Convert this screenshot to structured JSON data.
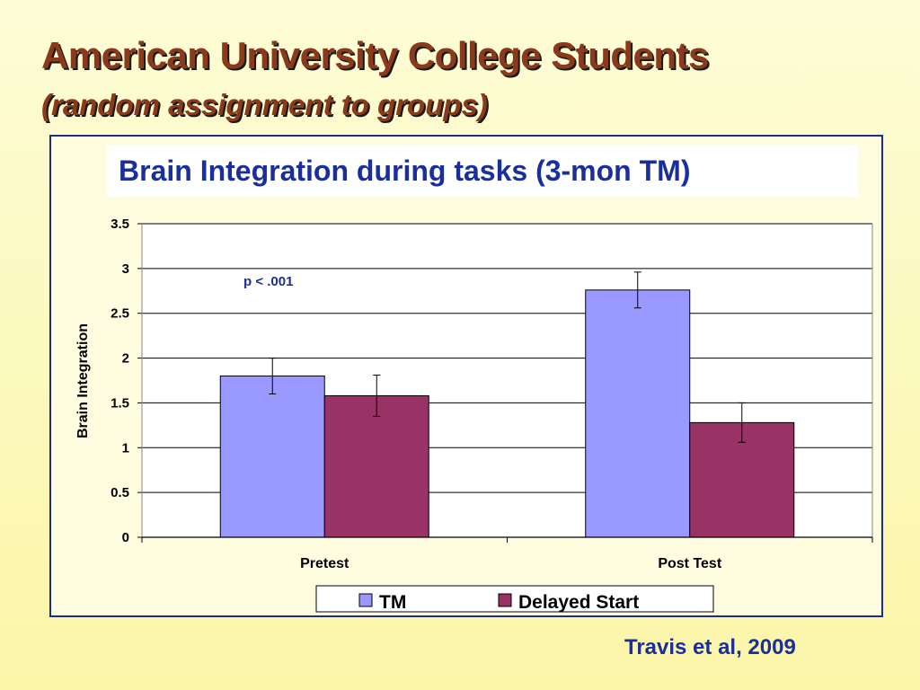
{
  "slide": {
    "title": "American University College Students",
    "subtitle": "(random assignment to groups)",
    "citation": "Travis et al, 2009"
  },
  "chart_data": {
    "type": "bar",
    "title": "Brain Integration during tasks (3-mon TM)",
    "ylabel": "Brain Integration",
    "xlabel": "",
    "categories": [
      "Pretest",
      "Post Test"
    ],
    "ylim": [
      0,
      3.5
    ],
    "yticks": [
      "0",
      "0.5",
      "1",
      "1.5",
      "2",
      "2.5",
      "3",
      "3.5"
    ],
    "grid": true,
    "legend_position": "bottom",
    "series": [
      {
        "name": "TM",
        "values": [
          1.8,
          2.76
        ],
        "errors": [
          0.2,
          0.2
        ],
        "color": "#9999ff"
      },
      {
        "name": "Delayed Start",
        "values": [
          1.58,
          1.28
        ],
        "errors": [
          0.23,
          0.22
        ],
        "color": "#993366"
      }
    ],
    "annotation": "p < .001"
  }
}
